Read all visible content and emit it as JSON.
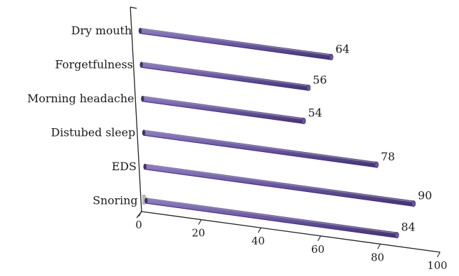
{
  "chart_data": {
    "type": "bar",
    "orientation": "horizontal",
    "categories": [
      "Dry mouth",
      "Forgetfulness",
      "Morning headache",
      "Distubed sleep",
      "EDS",
      "Snoring"
    ],
    "values": [
      64,
      56,
      54,
      78,
      90,
      84
    ],
    "value_labels": [
      "64",
      "56",
      "54",
      "78",
      "90",
      "84"
    ],
    "x_ticks": [
      "0",
      "20",
      "40",
      "60",
      "80",
      "100"
    ],
    "xlim": [
      0,
      100
    ],
    "title": "",
    "xlabel": "",
    "ylabel": "",
    "grid": false,
    "legend": "none",
    "bar_color": "#6a58a0",
    "bar_highlight": "#8f7fc4",
    "bar_shadow": "#40326c"
  }
}
